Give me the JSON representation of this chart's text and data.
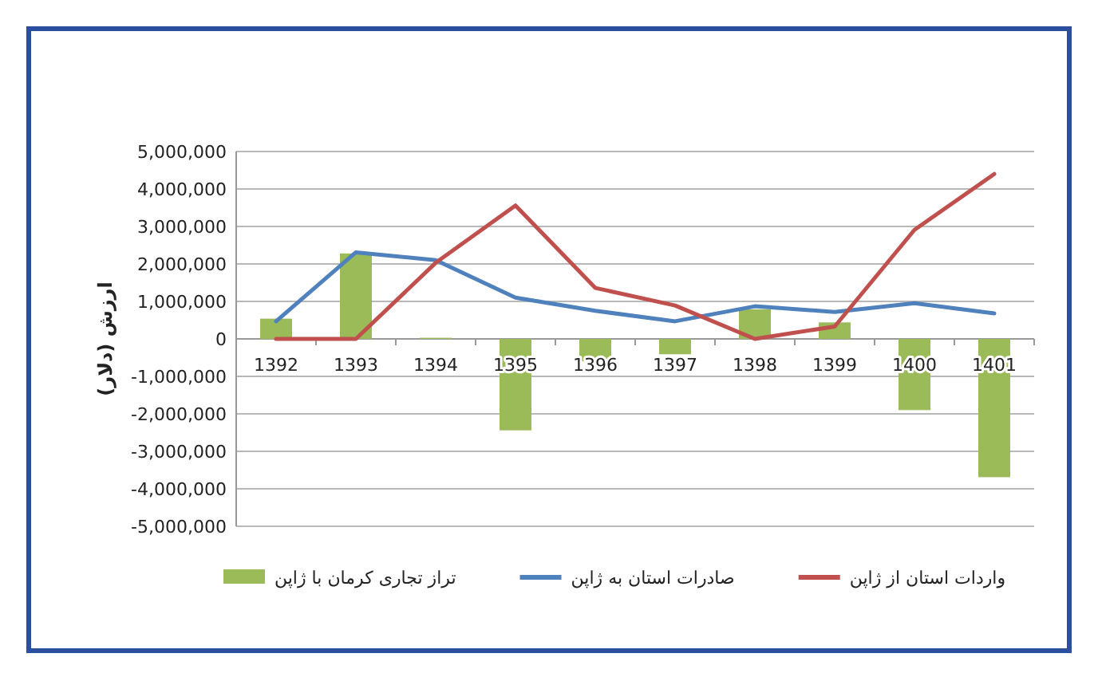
{
  "chart_data": {
    "type": "bar",
    "ylabel": "ارزش (دلار)",
    "categories": [
      "1392",
      "1393",
      "1394",
      "1395",
      "1396",
      "1397",
      "1398",
      "1399",
      "1400",
      "1401"
    ],
    "series": [
      {
        "name": "تراز تجاری کرمان با ژاپن",
        "color": "#9bbb59",
        "values": [
          540000,
          2280000,
          30000,
          -2440000,
          -600000,
          -410000,
          790000,
          440000,
          -1900000,
          -3690000
        ]
      },
      {
        "name": "صادرات استان به ژاپن",
        "type": "line",
        "color": "#4f81bd",
        "values": [
          470000,
          2310000,
          2100000,
          1100000,
          750000,
          470000,
          870000,
          720000,
          950000,
          680000
        ]
      },
      {
        "name": "واردات استان از ژاپن",
        "type": "line",
        "color": "#c0504d",
        "values": [
          0,
          0,
          2030000,
          3560000,
          1360000,
          890000,
          0,
          330000,
          2910000,
          4400000
        ]
      }
    ],
    "ylim": [
      -5000000,
      5000000
    ],
    "yticks": [
      {
        "value": -5000000,
        "label": "-5,000,000"
      },
      {
        "value": -4000000,
        "label": "-4,000,000"
      },
      {
        "value": -3000000,
        "label": "-3,000,000"
      },
      {
        "value": -2000000,
        "label": "-2,000,000"
      },
      {
        "value": -1000000,
        "label": "-1,000,000"
      },
      0,
      {
        "value": 1000000,
        "label": "1,000,000"
      },
      {
        "value": 2000000,
        "label": "2,000,000"
      },
      {
        "value": 3000000,
        "label": "3,000,000"
      },
      {
        "value": 4000000,
        "label": "4,000,000"
      },
      {
        "value": 5000000,
        "label": "5,000,000"
      }
    ],
    "grid": "y",
    "legend": "bottom",
    "marker": "none"
  }
}
